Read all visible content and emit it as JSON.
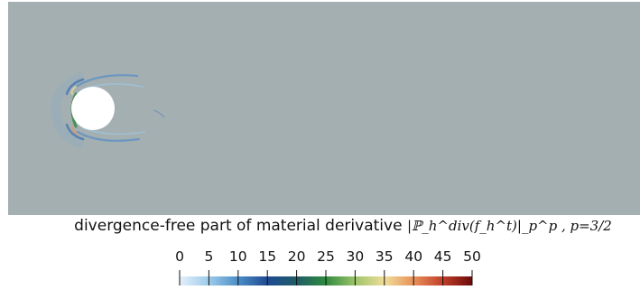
{
  "title": {
    "text": "divergence-free part of material derivative",
    "formula": "|ℙ_h^div(f_h^t)|_p^p , p=3/2"
  },
  "chart_data": {
    "type": "heatmap",
    "title": "divergence-free part of material derivative |ℙ_h^div(f_h^t)|_p^p , p=3/2",
    "colorbar": {
      "min": 0,
      "max": 50,
      "ticks": [
        0,
        5,
        10,
        15,
        20,
        25,
        30,
        35,
        40,
        45,
        50
      ],
      "tick_labels": [
        "0",
        "5",
        "10",
        "15",
        "20",
        "25",
        "30",
        "35",
        "40",
        "45",
        "50"
      ],
      "colormap": [
        "#e6f0fa",
        "#9ccbea",
        "#4c8ec6",
        "#1f4a93",
        "#1f5c66",
        "#2f8a3e",
        "#9cc46a",
        "#f0de9a",
        "#e8915a",
        "#c13e2a",
        "#6a0a0a"
      ]
    },
    "background_color": "#a4afb2",
    "obstacle_color": "#ffffff"
  }
}
